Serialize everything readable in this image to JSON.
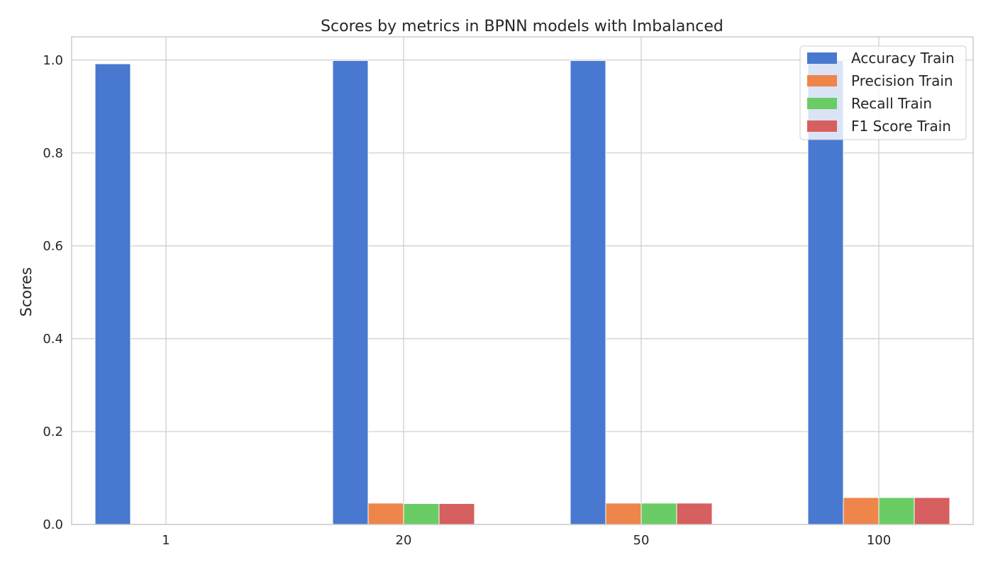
{
  "chart_data": {
    "type": "bar",
    "title": "Scores by metrics in BPNN models with Imbalanced",
    "xlabel": "",
    "ylabel": "Scores",
    "categories": [
      "1",
      "20",
      "50",
      "100"
    ],
    "series": [
      {
        "name": "Accuracy Train",
        "color": "#4878d0",
        "values": [
          0.992,
          0.999,
          0.999,
          0.999
        ]
      },
      {
        "name": "Precision Train",
        "color": "#ee854a",
        "values": [
          0.0,
          0.046,
          0.046,
          0.058
        ]
      },
      {
        "name": "Recall Train",
        "color": "#6acc64",
        "values": [
          0.0,
          0.045,
          0.046,
          0.058
        ]
      },
      {
        "name": "F1 Score Train",
        "color": "#d65f5f",
        "values": [
          0.0,
          0.045,
          0.046,
          0.058
        ]
      }
    ],
    "ylim": [
      0,
      1.05
    ],
    "yticks": [
      "0.0",
      "0.2",
      "0.4",
      "0.6",
      "0.8",
      "1.0"
    ],
    "grid": true,
    "legend_position": "top-right"
  }
}
